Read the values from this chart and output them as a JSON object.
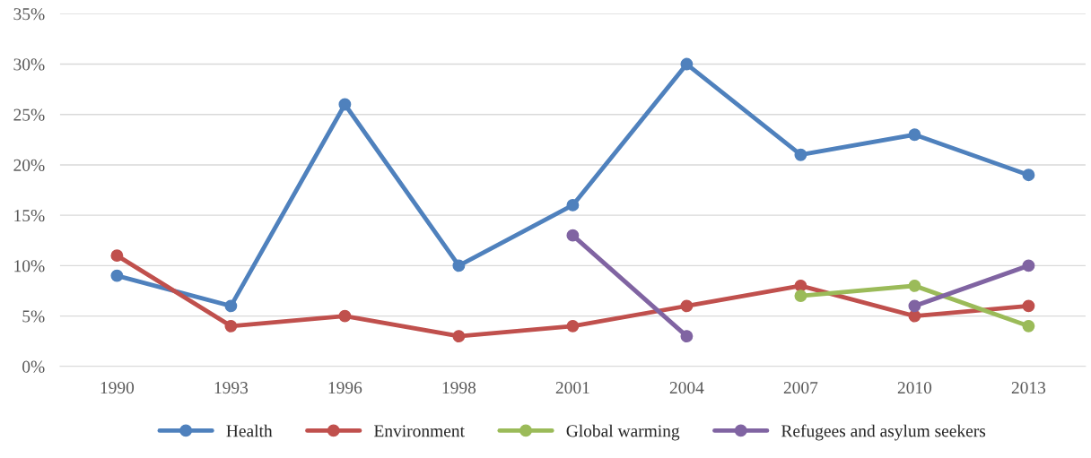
{
  "chart_data": {
    "type": "line",
    "categories": [
      "1990",
      "1993",
      "1996",
      "1998",
      "2001",
      "2004",
      "2007",
      "2010",
      "2013"
    ],
    "series": [
      {
        "name": "Health",
        "color": "#4f81bd",
        "values": [
          9,
          6,
          26,
          10,
          16,
          30,
          21,
          23,
          19
        ]
      },
      {
        "name": "Environment",
        "color": "#c0504d",
        "values": [
          11,
          4,
          5,
          3,
          4,
          6,
          8,
          5,
          6
        ]
      },
      {
        "name": "Global warming",
        "color": "#9bbb59",
        "values": [
          null,
          null,
          null,
          null,
          null,
          null,
          7,
          8,
          4
        ]
      },
      {
        "name": "Refugees and asylum seekers",
        "color": "#8064a2",
        "values": [
          null,
          null,
          null,
          null,
          13,
          3,
          null,
          6,
          10
        ]
      }
    ],
    "ylim": [
      0,
      35
    ],
    "yticks": [
      {
        "value": 0,
        "label": "0%"
      },
      {
        "value": 5,
        "label": "5%"
      },
      {
        "value": 10,
        "label": "10%"
      },
      {
        "value": 15,
        "label": "15%"
      },
      {
        "value": 20,
        "label": "20%"
      },
      {
        "value": 25,
        "label": "25%"
      },
      {
        "value": 30,
        "label": "30%"
      },
      {
        "value": 35,
        "label": "35%"
      }
    ],
    "grid": "y",
    "legend": "bottom",
    "marker": "circle",
    "line_style": "solid"
  }
}
